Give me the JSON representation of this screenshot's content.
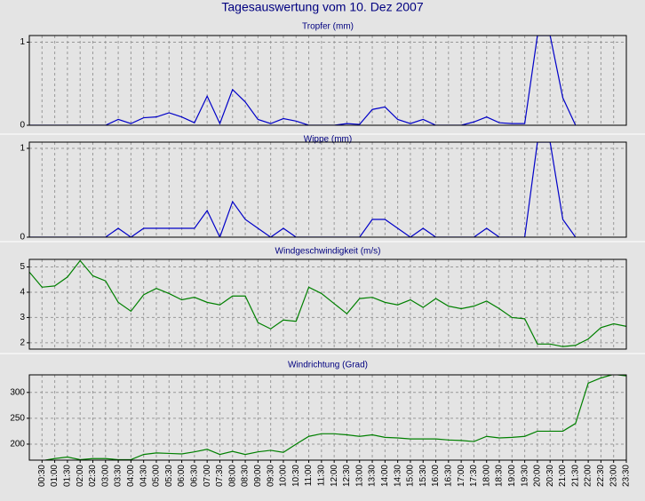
{
  "title": "Tagesauswertung vom 10. Dez 2007",
  "chart_data": [
    {
      "type": "line",
      "title": "Tropfer (mm)",
      "color": "#0000c8",
      "ylim": [
        0,
        1.08
      ],
      "yticks": [
        0,
        1
      ],
      "grid": true,
      "values": [
        0,
        0,
        0,
        0,
        0,
        0,
        0,
        0.07,
        0.02,
        0.09,
        0.1,
        0.15,
        0.1,
        0.03,
        0.35,
        0.02,
        0.43,
        0.28,
        0.07,
        0.02,
        0.08,
        0.05,
        0,
        0,
        0,
        0.02,
        0.01,
        0.19,
        0.22,
        0.07,
        0.02,
        0.07,
        0,
        0,
        0,
        0.04,
        0.1,
        0.03,
        0.02,
        0.02,
        1.08,
        1.08,
        0.33,
        0,
        null,
        null,
        null,
        null
      ]
    },
    {
      "type": "line",
      "title": "Wippe (mm)",
      "color": "#0000c8",
      "ylim": [
        0,
        1.07
      ],
      "yticks": [
        0,
        1
      ],
      "grid": true,
      "values": [
        0,
        0,
        0,
        0,
        0,
        0,
        0,
        0.1,
        0,
        0.1,
        0.1,
        0.1,
        0.1,
        0.1,
        0.3,
        0,
        0.4,
        0.2,
        0.1,
        0,
        0.1,
        0,
        0,
        0,
        0,
        0,
        0,
        0.2,
        0.2,
        0.1,
        0,
        0.1,
        0,
        0,
        0,
        0,
        0.1,
        0,
        0,
        0,
        1.07,
        1.07,
        0.2,
        0,
        null,
        null,
        null,
        null
      ]
    },
    {
      "type": "line",
      "title": "Windgeschwindigkeit (m/s)",
      "color": "#008000",
      "ylim": [
        1.75,
        5.3
      ],
      "yticks": [
        2,
        3,
        4,
        5
      ],
      "grid": true,
      "values": [
        4.8,
        4.2,
        4.25,
        4.6,
        5.25,
        4.65,
        4.45,
        3.6,
        3.25,
        3.9,
        4.15,
        3.95,
        3.7,
        3.8,
        3.6,
        3.5,
        3.85,
        3.85,
        2.8,
        2.55,
        2.9,
        2.85,
        4.2,
        3.95,
        3.55,
        3.15,
        3.75,
        3.8,
        3.6,
        3.5,
        3.7,
        3.4,
        3.75,
        3.45,
        3.35,
        3.45,
        3.65,
        3.35,
        3.0,
        2.95,
        1.95,
        1.95,
        1.85,
        1.9,
        2.15,
        2.6,
        2.75,
        2.65
      ]
    },
    {
      "type": "line",
      "title": "Windrichtung (Grad)",
      "color": "#008000",
      "ylim": [
        169,
        334
      ],
      "yticks": [
        200,
        250,
        300
      ],
      "grid": true,
      "categories": [
        null,
        "00:30",
        "01:00",
        "01:30",
        "02:00",
        "02:30",
        "03:00",
        "03:30",
        "04:00",
        "04:30",
        "05:00",
        "05:30",
        "06:00",
        "06:30",
        "07:00",
        "07:30",
        "08:00",
        "08:30",
        "09:00",
        "09:30",
        "10:00",
        "10:30",
        "11:00",
        "11:30",
        "12:00",
        "12:30",
        "13:00",
        "13:30",
        "14:00",
        "14:30",
        "15:00",
        "15:30",
        "16:00",
        "16:30",
        "17:00",
        "17:30",
        "18:00",
        "18:30",
        "19:00",
        "19:30",
        "20:00",
        "20:30",
        "21:00",
        "21:30",
        "22:00",
        "22:30",
        "23:00",
        "23:30"
      ],
      "values": [
        null,
        168,
        172,
        175,
        170,
        172,
        172,
        170,
        170,
        180,
        183,
        182,
        181,
        185,
        190,
        180,
        186,
        180,
        185,
        188,
        184,
        200,
        215,
        220,
        220,
        218,
        215,
        218,
        213,
        212,
        210,
        210,
        210,
        208,
        207,
        205,
        215,
        212,
        213,
        215,
        225,
        225,
        225,
        240,
        318,
        328,
        335,
        332
      ]
    }
  ]
}
